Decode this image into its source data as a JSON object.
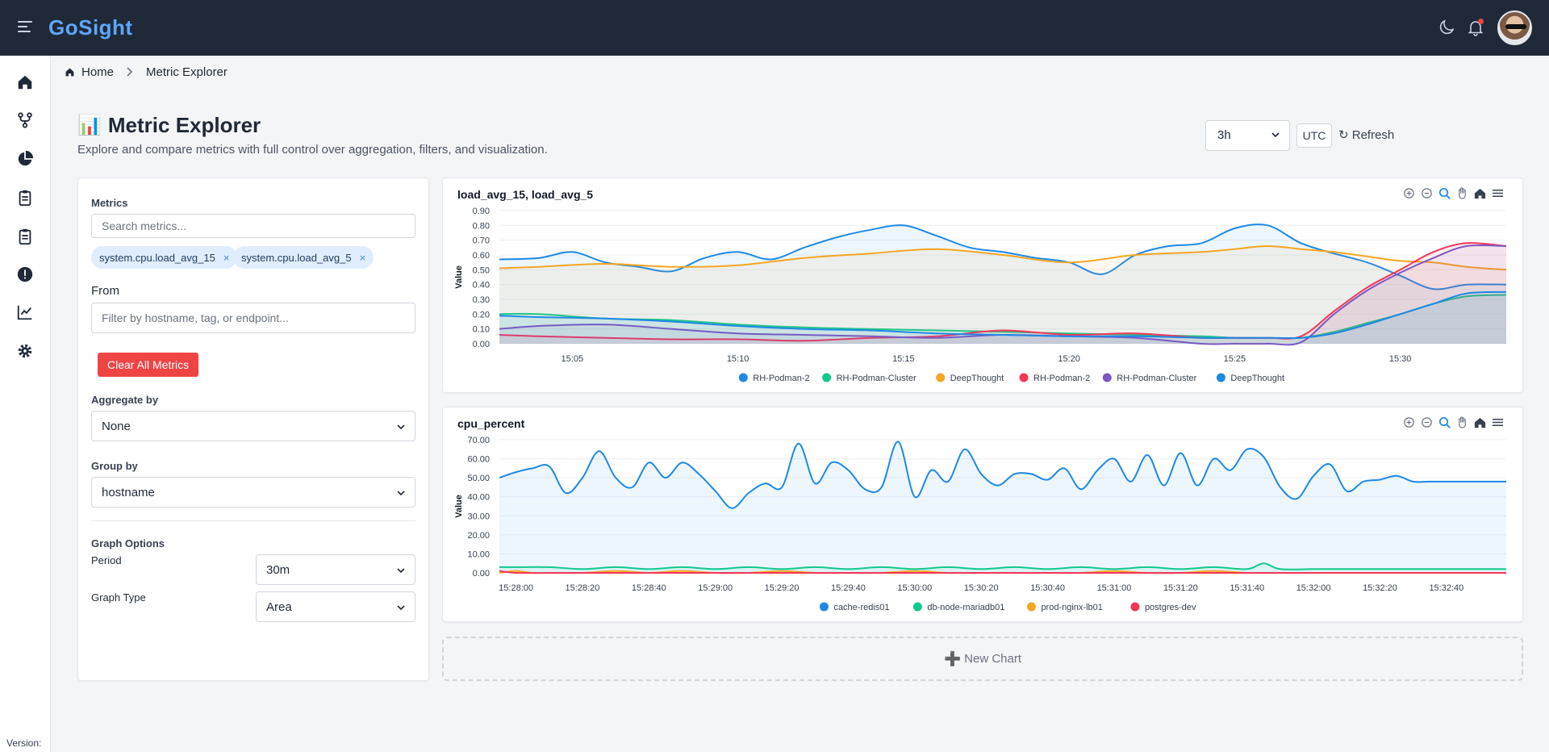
{
  "app": {
    "brand": "GoSight"
  },
  "header": {
    "icons": [
      "menu-icon",
      "moon-icon",
      "bell-icon",
      "avatar"
    ]
  },
  "sidebar": {
    "items": [
      "home-icon",
      "branch-icon",
      "pie-chart-icon",
      "clipboard-icon",
      "clipboard-icon",
      "alert-icon",
      "chart-icon",
      "gear-icon"
    ],
    "version_label": "Version:"
  },
  "breadcrumb": {
    "home": "Home",
    "current": "Metric Explorer"
  },
  "page": {
    "title": "Metric Explorer",
    "emoji": "📊",
    "subtitle": "Explore and compare metrics with full control over aggregation, filters, and visualization."
  },
  "controls": {
    "range": "3h",
    "timezone": "UTC",
    "refresh": "↻ Refresh"
  },
  "panel": {
    "metrics_label": "Metrics",
    "search_placeholder": "Search metrics...",
    "chips": [
      "system.cpu.load_avg_15",
      "system.cpu.load_avg_5"
    ],
    "chip_remove": "×",
    "from_label": "From",
    "from_placeholder": "Filter by hostname, tag, or endpoint...",
    "clear_button": "Clear All Metrics",
    "aggregate_label": "Aggregate by",
    "aggregate_value": "None",
    "group_label": "Group by",
    "group_value": "hostname",
    "graph_options_label": "Graph Options",
    "period_label": "Period",
    "period_value": "30m",
    "graph_type_label": "Graph Type",
    "graph_type_value": "Area"
  },
  "new_chart": {
    "label": "New Chart",
    "icon": "➕"
  },
  "colors": {
    "blue": "#1e88e5",
    "green": "#10c98f",
    "orange": "#f5a623",
    "red": "#f4365a",
    "purple": "#7e57c2"
  },
  "chart_data": [
    {
      "type": "area",
      "title": "load_avg_15, load_avg_5",
      "ylabel": "Value",
      "ylim": [
        0,
        0.9
      ],
      "yticks": [
        "0.00",
        "0.10",
        "0.20",
        "0.30",
        "0.40",
        "0.50",
        "0.60",
        "0.70",
        "0.80",
        "0.90"
      ],
      "xticks": [
        "15:05",
        "15:10",
        "15:15",
        "15:20",
        "15:25",
        "15:30"
      ],
      "xtick_minutes": [
        5,
        10,
        15,
        20,
        25,
        30
      ],
      "xrange_minutes": [
        2.8,
        33.2
      ],
      "legend": [
        "RH-Podman-2",
        "RH-Podman-Cluster",
        "DeepThought",
        "RH-Podman-2",
        "RH-Podman-Cluster",
        "DeepThought"
      ],
      "series": [
        {
          "name": "RH-Podman-2",
          "color": "#1e88e5",
          "x": [
            2.8,
            4,
            5,
            6,
            7,
            8,
            9,
            10,
            11,
            12,
            13,
            14,
            15,
            16,
            17,
            18,
            19,
            20,
            21,
            22,
            23,
            24,
            25,
            26,
            27,
            28,
            29,
            30,
            31,
            32,
            33.2
          ],
          "values": [
            0.57,
            0.58,
            0.62,
            0.55,
            0.52,
            0.49,
            0.58,
            0.62,
            0.57,
            0.65,
            0.72,
            0.77,
            0.8,
            0.73,
            0.65,
            0.62,
            0.58,
            0.55,
            0.47,
            0.6,
            0.66,
            0.68,
            0.78,
            0.8,
            0.68,
            0.61,
            0.55,
            0.46,
            0.37,
            0.4,
            0.4
          ]
        },
        {
          "name": "RH-Podman-Cluster",
          "color": "#10c98f",
          "x": [
            2.8,
            4,
            6,
            8,
            10,
            12,
            14,
            16,
            18,
            20,
            22,
            24,
            25,
            26,
            27,
            28,
            29,
            30,
            31,
            32,
            33.2
          ],
          "values": [
            0.2,
            0.2,
            0.17,
            0.16,
            0.13,
            0.11,
            0.1,
            0.09,
            0.08,
            0.07,
            0.06,
            0.05,
            0.04,
            0.04,
            0.04,
            0.08,
            0.14,
            0.2,
            0.27,
            0.32,
            0.33
          ]
        },
        {
          "name": "DeepThought",
          "color": "#f5a623",
          "x": [
            2.8,
            4,
            6,
            8,
            10,
            12,
            14,
            16,
            18,
            20,
            22,
            24,
            25,
            26,
            27,
            28,
            29,
            30,
            31,
            32,
            33.2
          ],
          "values": [
            0.51,
            0.52,
            0.54,
            0.52,
            0.53,
            0.58,
            0.61,
            0.64,
            0.6,
            0.55,
            0.6,
            0.62,
            0.64,
            0.66,
            0.64,
            0.62,
            0.59,
            0.56,
            0.55,
            0.52,
            0.5
          ]
        },
        {
          "name": "RH-Podman-2",
          "color": "#f4365a",
          "x": [
            2.8,
            4,
            6,
            8,
            10,
            12,
            14,
            16,
            18,
            20,
            22,
            24,
            25,
            26,
            27,
            28,
            29,
            30,
            31,
            32,
            33.2
          ],
          "values": [
            0.06,
            0.05,
            0.04,
            0.03,
            0.03,
            0.02,
            0.04,
            0.05,
            0.09,
            0.06,
            0.07,
            0.04,
            0.04,
            0.04,
            0.05,
            0.22,
            0.38,
            0.5,
            0.62,
            0.68,
            0.66
          ]
        },
        {
          "name": "RH-Podman-Cluster",
          "color": "#7e57c2",
          "x": [
            2.8,
            4,
            6,
            8,
            10,
            12,
            14,
            16,
            18,
            20,
            22,
            24,
            25,
            26,
            27,
            28,
            29,
            30,
            31,
            32,
            33.2
          ],
          "values": [
            0.1,
            0.12,
            0.13,
            0.1,
            0.07,
            0.06,
            0.05,
            0.04,
            0.06,
            0.05,
            0.04,
            0.0,
            0.0,
            0.0,
            0.01,
            0.2,
            0.36,
            0.48,
            0.58,
            0.66,
            0.66
          ]
        },
        {
          "name": "DeepThought",
          "color": "#1e88e5",
          "x": [
            2.8,
            4,
            6,
            8,
            10,
            12,
            14,
            16,
            18,
            20,
            22,
            24,
            25,
            26,
            27,
            28,
            29,
            30,
            31,
            32,
            33.2
          ],
          "values": [
            0.19,
            0.18,
            0.17,
            0.15,
            0.12,
            0.1,
            0.09,
            0.07,
            0.06,
            0.05,
            0.05,
            0.04,
            0.04,
            0.04,
            0.04,
            0.07,
            0.13,
            0.2,
            0.27,
            0.34,
            0.35
          ]
        }
      ]
    },
    {
      "type": "area",
      "title": "cpu_percent",
      "ylabel": "Value",
      "ylim": [
        0,
        70
      ],
      "yticks": [
        "0.00",
        "10.00",
        "20.00",
        "30.00",
        "40.00",
        "50.00",
        "60.00",
        "70.00"
      ],
      "xticks": [
        "15:28:00",
        "15:28:20",
        "15:28:40",
        "15:29:00",
        "15:29:20",
        "15:29:40",
        "15:30:00",
        "15:30:20",
        "15:30:40",
        "15:31:00",
        "15:31:20",
        "15:31:40",
        "15:32:00",
        "15:32:20",
        "15:32:40"
      ],
      "xtick_seconds": [
        0,
        20,
        40,
        60,
        80,
        100,
        120,
        140,
        160,
        180,
        200,
        220,
        240,
        260,
        280
      ],
      "xrange_seconds": [
        -5,
        298
      ],
      "legend": [
        "cache-redis01",
        "db-node-mariadb01",
        "prod-nginx-lb01",
        "postgres-dev"
      ],
      "series": [
        {
          "name": "cache-redis01",
          "color": "#1e88e5",
          "x": [
            -5,
            0,
            5,
            10,
            15,
            20,
            25,
            30,
            35,
            40,
            45,
            50,
            55,
            60,
            65,
            70,
            75,
            80,
            85,
            90,
            95,
            100,
            105,
            110,
            115,
            120,
            125,
            130,
            135,
            140,
            145,
            150,
            155,
            160,
            165,
            170,
            175,
            180,
            185,
            190,
            195,
            200,
            205,
            210,
            215,
            220,
            225,
            230,
            235,
            240,
            245,
            250,
            255,
            260,
            265,
            270,
            275,
            280,
            285,
            290,
            298
          ],
          "values": [
            50,
            53,
            55,
            56,
            42,
            50,
            64,
            50,
            45,
            58,
            50,
            58,
            52,
            43,
            34,
            42,
            47,
            45,
            68,
            47,
            58,
            54,
            44,
            45,
            69,
            40,
            54,
            48,
            65,
            52,
            46,
            52,
            52,
            49,
            55,
            44,
            54,
            60,
            48,
            62,
            46,
            63,
            46,
            60,
            54,
            65,
            61,
            45,
            39,
            51,
            57,
            43,
            48,
            49,
            51,
            48,
            48,
            48,
            48,
            48,
            48
          ]
        },
        {
          "name": "db-node-mariadb01",
          "color": "#10c98f",
          "x": [
            -5,
            0,
            10,
            20,
            30,
            40,
            50,
            60,
            70,
            80,
            90,
            100,
            110,
            120,
            130,
            140,
            150,
            160,
            170,
            180,
            190,
            200,
            210,
            220,
            225,
            230,
            240,
            250,
            260,
            270,
            280,
            298
          ],
          "values": [
            3,
            3,
            3,
            2,
            3,
            2,
            3,
            2,
            3,
            2,
            3,
            2,
            3,
            2,
            3,
            2,
            3,
            2,
            3,
            2,
            3,
            2,
            3,
            2,
            5,
            2,
            2,
            2,
            2,
            2,
            2,
            2
          ]
        },
        {
          "name": "prod-nginx-lb01",
          "color": "#f5a623",
          "x": [
            -5,
            0,
            5,
            10,
            20,
            30,
            40,
            50,
            60,
            70,
            80,
            90,
            100,
            110,
            120,
            130,
            140,
            150,
            160,
            170,
            180,
            190,
            200,
            210,
            220,
            230,
            240,
            250,
            260,
            270,
            280,
            298
          ],
          "values": [
            0,
            1,
            0,
            0,
            0,
            1,
            0,
            1,
            0,
            0,
            1,
            0,
            0,
            0,
            1,
            0,
            0,
            0,
            0,
            0,
            1,
            0,
            0,
            1,
            0,
            0,
            0,
            0,
            0,
            0,
            0,
            0
          ]
        },
        {
          "name": "postgres-dev",
          "color": "#f4365a",
          "x": [
            -5,
            0,
            10,
            20,
            40,
            60,
            80,
            100,
            120,
            140,
            160,
            180,
            200,
            220,
            240,
            260,
            280,
            298
          ],
          "values": [
            1,
            0,
            0,
            0,
            0,
            0,
            0,
            0,
            0,
            0,
            0,
            0,
            0,
            0,
            0,
            0,
            0,
            0
          ]
        }
      ]
    }
  ]
}
